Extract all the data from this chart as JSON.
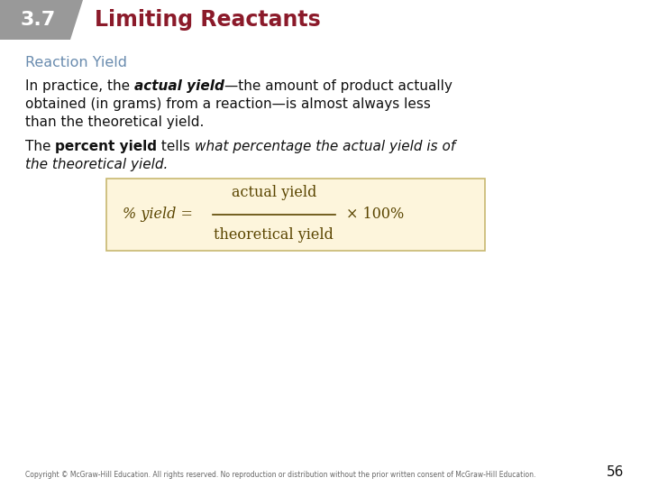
{
  "header_bg_color": "#999999",
  "header_text_color": "#ffffff",
  "header_number": "3.7",
  "header_title": "Limiting Reactants",
  "header_title_color": "#8b1a2a",
  "section_title": "Reaction Yield",
  "section_title_color": "#6a8caf",
  "formula_box_color": "#fdf5dc",
  "formula_box_border": "#c8b870",
  "copyright_text": "Copyright © McGraw-Hill Education. All rights reserved. No reproduction or distribution without the prior written consent of McGraw-Hill Education.",
  "page_number": "56",
  "body_text_color": "#111111",
  "formula_text_color": "#5a4500"
}
